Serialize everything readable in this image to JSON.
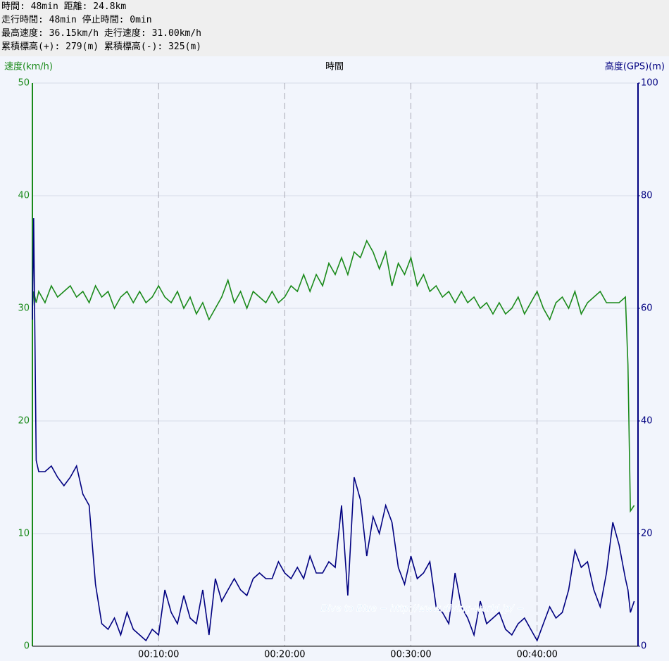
{
  "header": {
    "lines": [
      "時間: 48min 距離: 24.8km",
      "走行時間: 48min 停止時間: 0min",
      "最高速度: 36.15km/h 走行速度: 31.00km/h",
      "累積標高(+): 279(m) 累積標高(-): 325(m)"
    ]
  },
  "chart_data": {
    "type": "line",
    "ylabel": "速度(km/h)",
    "xlabel": "時間",
    "y2label": "高度(GPS)(m)",
    "watermark": "Dive to Blue − http://www.diving-world.jp/ −",
    "xlim": [
      0,
      48
    ],
    "xticks": [
      {
        "value": 10,
        "label": "00:10:00"
      },
      {
        "value": 20,
        "label": "00:20:00"
      },
      {
        "value": 30,
        "label": "00:30:00"
      },
      {
        "value": 40,
        "label": "00:40:00"
      }
    ],
    "ylim": [
      0,
      50
    ],
    "yticks": [
      0,
      10,
      20,
      30,
      40,
      50
    ],
    "y2lim": [
      0,
      100
    ],
    "y2ticks": [
      0,
      20,
      40,
      60,
      80,
      100
    ],
    "grid": true,
    "x": [
      0,
      0.1,
      0.3,
      0.5,
      1,
      1.5,
      2,
      2.5,
      3,
      3.5,
      4,
      4.5,
      5,
      5.5,
      6,
      6.5,
      7,
      7.5,
      8,
      8.5,
      9,
      9.5,
      10,
      10.5,
      11,
      11.5,
      12,
      12.5,
      13,
      13.5,
      14,
      14.5,
      15,
      15.5,
      16,
      16.5,
      17,
      17.5,
      18,
      18.5,
      19,
      19.5,
      20,
      20.5,
      21,
      21.5,
      22,
      22.5,
      23,
      23.5,
      24,
      24.5,
      25,
      25.5,
      26,
      26.5,
      27,
      27.5,
      28,
      28.5,
      29,
      29.5,
      30,
      30.5,
      31,
      31.5,
      32,
      32.5,
      33,
      33.5,
      34,
      34.5,
      35,
      35.5,
      36,
      36.5,
      37,
      37.5,
      38,
      38.5,
      39,
      39.5,
      40,
      40.5,
      41,
      41.5,
      42,
      42.5,
      43,
      43.5,
      44,
      44.5,
      45,
      45.5,
      46,
      46.5,
      47,
      47.2,
      47.4,
      47.7
    ],
    "series": [
      {
        "name": "速度",
        "color": "#1a8a1a",
        "axis": "y",
        "values": [
          30,
          31.5,
          30.5,
          31.5,
          30.5,
          32,
          31,
          31.5,
          32,
          31,
          31.5,
          30.5,
          32,
          31,
          31.5,
          30,
          31,
          31.5,
          30.5,
          31.5,
          30.5,
          31,
          32,
          31,
          30.5,
          31.5,
          30,
          31,
          29.5,
          30.5,
          29,
          30,
          31,
          32.5,
          30.5,
          31.5,
          30,
          31.5,
          31,
          30.5,
          31.5,
          30.5,
          31,
          32,
          31.5,
          33,
          31.5,
          33,
          32,
          34,
          33,
          34.5,
          33,
          35,
          34.5,
          36,
          35,
          33.5,
          35,
          32,
          34,
          33,
          34.5,
          32,
          33,
          31.5,
          32,
          31,
          31.5,
          30.5,
          31.5,
          30.5,
          31,
          30,
          30.5,
          29.5,
          30.5,
          29.5,
          30,
          31,
          29.5,
          30.5,
          31.5,
          30,
          29,
          30.5,
          31,
          30,
          31.5,
          29.5,
          30.5,
          31,
          31.5,
          30.5,
          30.5,
          30.5,
          31,
          25,
          12,
          12.5
        ]
      },
      {
        "name": "高度",
        "color": "#000080",
        "axis": "y2",
        "values": [
          58,
          76,
          33,
          31,
          31,
          32,
          30,
          28.5,
          30,
          32,
          27,
          25,
          11,
          4,
          3,
          5,
          2,
          6,
          3,
          2,
          1,
          3,
          2,
          10,
          6,
          4,
          9,
          5,
          4,
          10,
          2,
          12,
          8,
          10,
          12,
          10,
          9,
          12,
          13,
          12,
          12,
          15,
          13,
          12,
          14,
          12,
          16,
          13,
          13,
          15,
          14,
          25,
          9,
          30,
          26,
          16,
          23,
          20,
          25,
          22,
          14,
          11,
          16,
          12,
          13,
          15,
          7,
          6,
          4,
          13,
          7,
          5,
          2,
          8,
          4,
          5,
          6,
          3,
          2,
          4,
          5,
          3,
          1,
          4,
          7,
          5,
          6,
          10,
          17,
          14,
          15,
          10,
          7,
          13,
          22,
          18,
          12,
          10,
          6,
          8
        ]
      }
    ]
  }
}
